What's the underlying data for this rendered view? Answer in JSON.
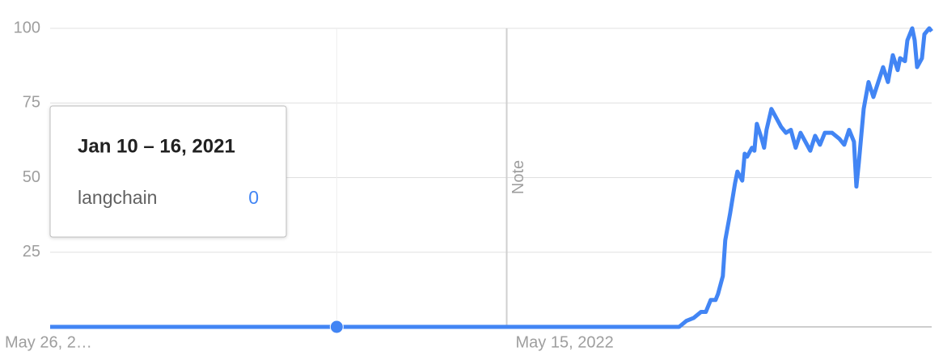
{
  "chart_data": {
    "type": "line",
    "annotation": "Note",
    "tooltip": {
      "title": "Jan 10 – 16, 2021",
      "series_name": "langchain",
      "value": 0
    },
    "x": [
      0,
      118,
      259,
      262,
      265,
      268,
      270,
      272,
      274,
      275,
      277,
      278,
      280,
      282,
      283,
      285,
      286,
      287,
      289,
      290,
      291,
      293,
      294,
      295,
      297,
      299,
      301,
      303,
      305,
      307,
      309,
      311,
      313,
      315,
      317,
      319,
      322,
      325,
      327,
      329,
      331,
      332,
      333,
      335,
      337,
      339,
      341,
      343,
      345,
      347,
      349,
      350,
      352,
      353,
      355,
      356,
      357,
      359,
      360,
      362,
      363
    ],
    "series": [
      {
        "name": "langchain",
        "color": "#4285f4",
        "values": [
          0,
          0,
          0,
          2,
          3,
          5,
          5,
          9,
          9,
          11,
          17,
          29,
          38,
          48,
          52,
          49,
          58,
          57,
          60,
          59,
          68,
          63,
          60,
          66,
          73,
          70,
          67,
          65,
          66,
          60,
          65,
          62,
          59,
          64,
          61,
          65,
          65,
          63,
          61,
          66,
          62,
          47,
          55,
          73,
          82,
          77,
          82,
          87,
          82,
          91,
          86,
          90,
          89,
          96,
          100,
          96,
          87,
          90,
          98,
          100,
          99
        ]
      }
    ],
    "xlim": [
      0,
      363
    ],
    "xticks": [
      {
        "value": 0,
        "label": "May 26, 2…"
      },
      {
        "value": 188,
        "label": "May 15, 2022"
      }
    ],
    "ylim": [
      0,
      100
    ],
    "yticks": [
      25,
      50,
      75,
      100
    ],
    "grid": true
  }
}
